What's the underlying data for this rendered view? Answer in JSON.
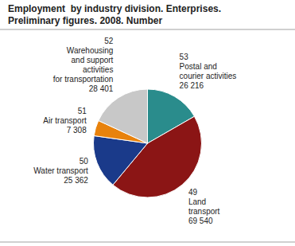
{
  "chart_data": {
    "type": "pie",
    "title": "Employment  by industry division. Enterprises.",
    "subtitle": "Preliminary figures. 2008. Number",
    "categories": [
      "53\nPostal and\ncourier activities",
      "49\nLand\ntransport",
      "50\nWater transport",
      "51\nAir transport",
      "52\nWarehousing\nand support\nactivities\nfor transportation"
    ],
    "values": [
      26216,
      69540,
      25362,
      7308,
      28401
    ],
    "value_labels": [
      "26 216",
      "69 540",
      "25 362",
      "7 308",
      "28 401"
    ],
    "colors": [
      "#2A8C8C",
      "#8B1515",
      "#1A3A8A",
      "#E8820C",
      "#C8C8C8"
    ],
    "data_labels": true
  }
}
